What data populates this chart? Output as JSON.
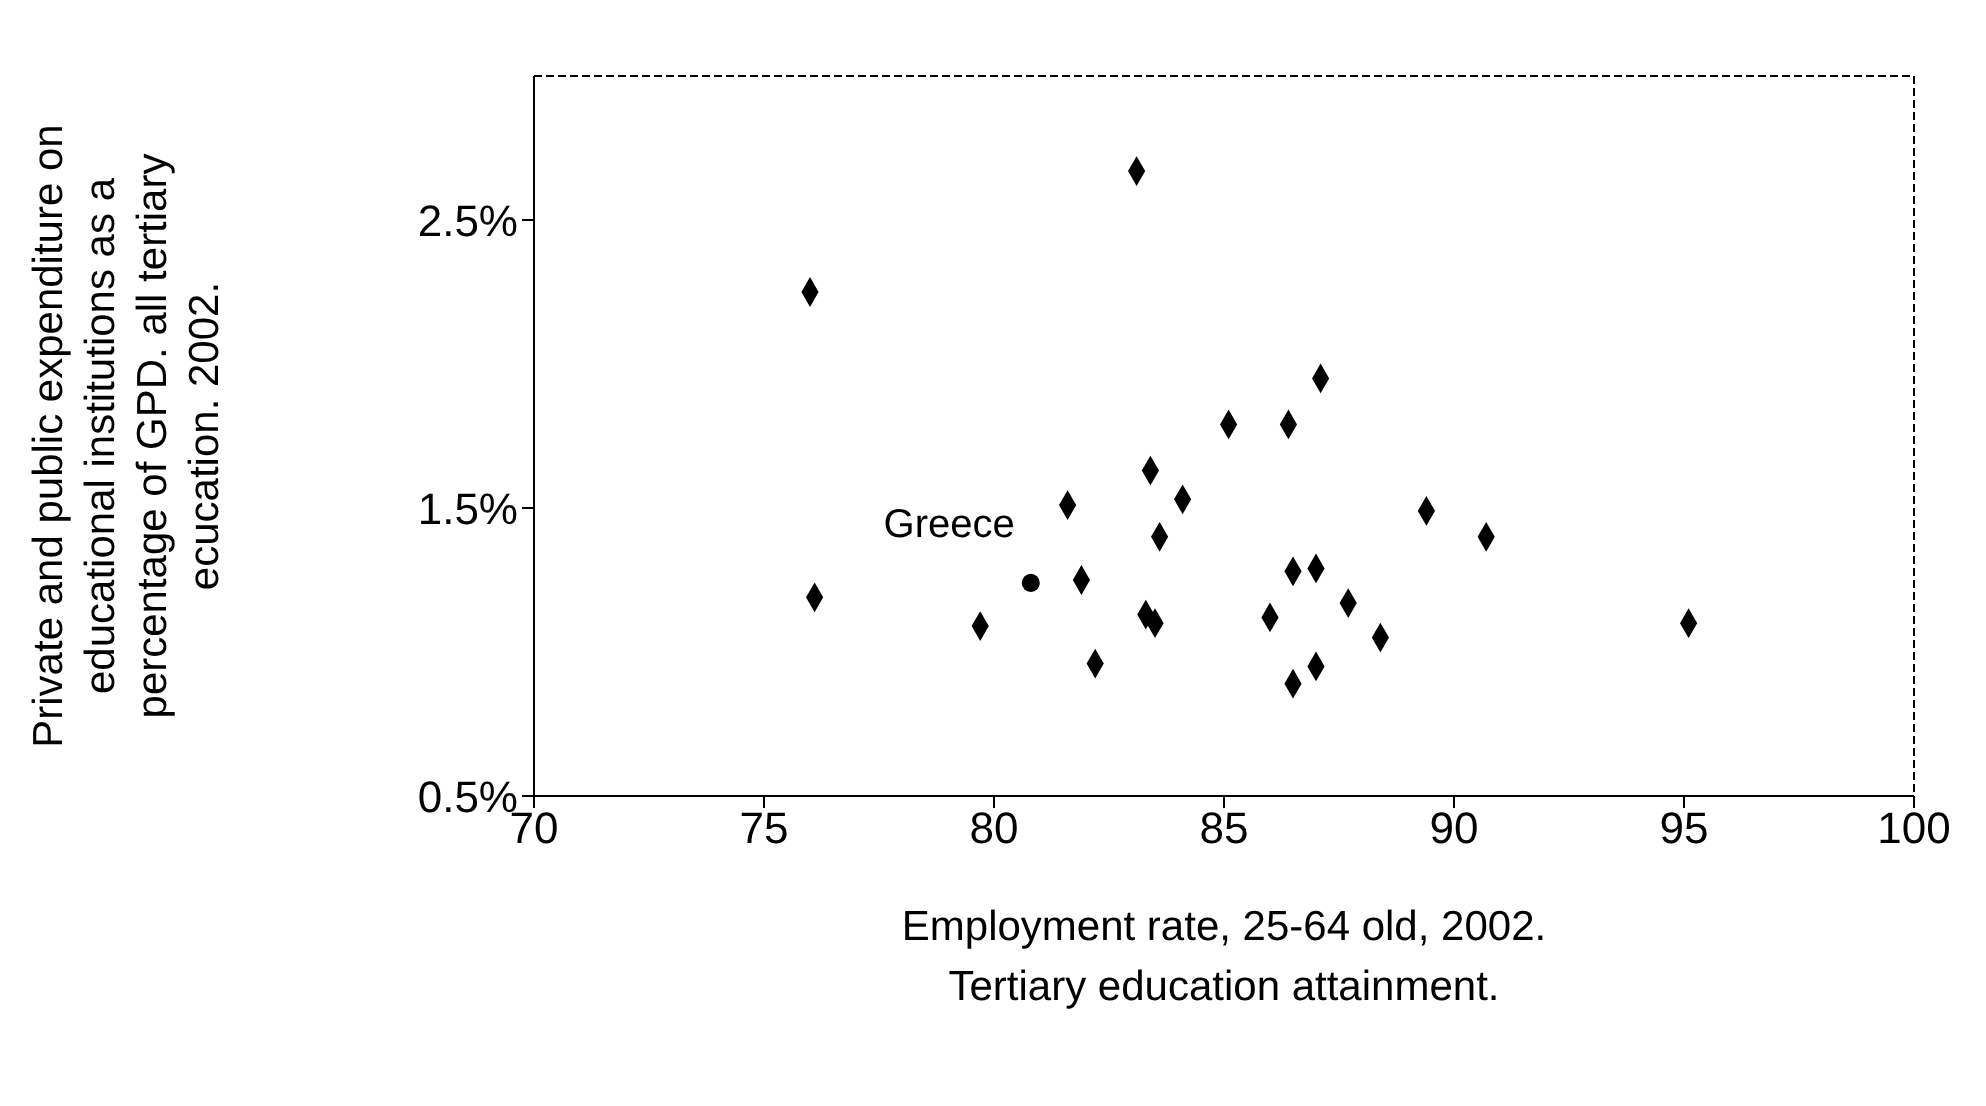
{
  "chart_data": {
    "type": "scatter",
    "xlabel": "Employment rate, 25-64 old, 2002.\nTertiary education attainment.",
    "ylabel": "Private and public expenditure on educational institutions as a percentage of GPD. all tertiary ecucation.  2002.",
    "xlim": [
      70,
      100
    ],
    "xticks": [
      70,
      75,
      80,
      85,
      90,
      95,
      100
    ],
    "ylim": [
      0.5,
      3.0
    ],
    "yticks": [
      {
        "value": 0.5,
        "label": "0.5%"
      },
      {
        "value": 1.5,
        "label": "1.5%"
      },
      {
        "value": 2.5,
        "label": "2.5%"
      }
    ],
    "grid": false,
    "series": [
      {
        "color": "#000000",
        "marker": "diamond",
        "x": [
          76.0,
          76.1,
          83.1,
          79.7,
          81.6,
          81.9,
          82.2,
          83.3,
          83.5,
          83.4,
          83.6,
          84.1,
          85.1,
          86.4,
          87.1,
          86.0,
          86.5,
          87.0,
          86.5,
          87.0,
          87.7,
          88.4,
          89.4,
          90.7,
          95.1
        ],
        "values": [
          2.25,
          1.19,
          2.67,
          1.09,
          1.51,
          1.25,
          0.96,
          1.13,
          1.1,
          1.63,
          1.4,
          1.53,
          1.79,
          1.79,
          1.95,
          1.12,
          1.28,
          1.29,
          0.89,
          0.95,
          1.17,
          1.05,
          1.49,
          1.4,
          1.1
        ]
      },
      {
        "color": "#000000",
        "marker": "circle",
        "x": [
          80.8
        ],
        "values": [
          1.24
        ]
      }
    ],
    "annotations": [
      {
        "text": "Greece",
        "x": 80.8,
        "y": 1.24
      }
    ]
  }
}
